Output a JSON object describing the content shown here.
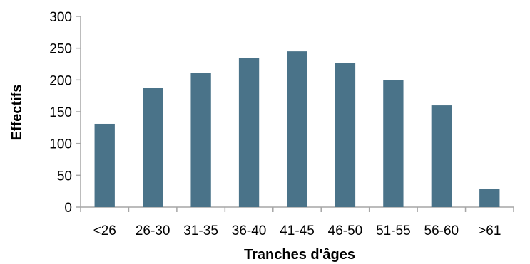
{
  "chart_data": {
    "type": "bar",
    "title": "",
    "xlabel": "Tranches d'âges",
    "ylabel": "Effectifs",
    "categories": [
      "<26",
      "26-30",
      "31-35",
      "36-40",
      "41-45",
      "46-50",
      "51-55",
      "56-60",
      ">61"
    ],
    "values": [
      131,
      187,
      211,
      235,
      245,
      227,
      200,
      160,
      29
    ],
    "ylim": [
      0,
      300
    ],
    "yticks": [
      0,
      50,
      100,
      150,
      200,
      250,
      300
    ],
    "grid": false,
    "legend": "none",
    "bar_color": "#4A7389",
    "axis_color": "#A6A6A6"
  }
}
